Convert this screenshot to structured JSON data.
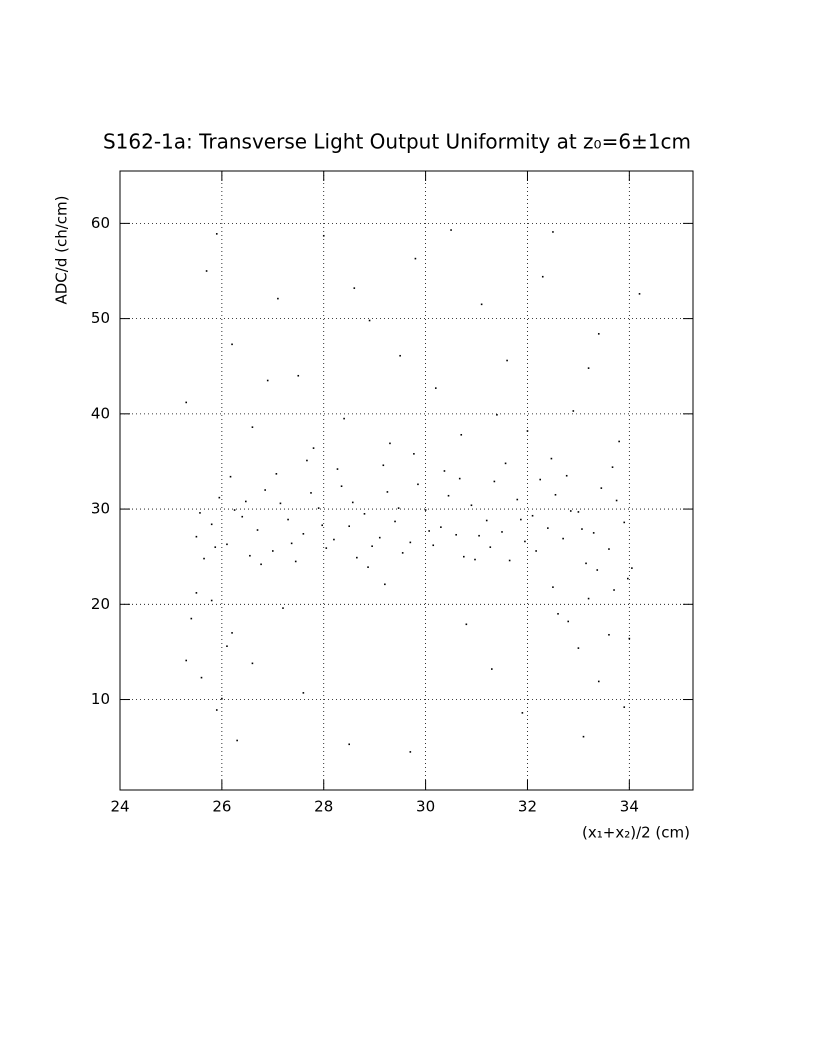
{
  "chart_data": {
    "type": "scatter",
    "title": "S162-1a: Transverse Light Output Uniformity at z₀=6±1cm",
    "x_label": "(x₁+x₂)/2 (cm)",
    "y_label": "ADC/d (ch/cm)",
    "xlim": [
      24,
      35.25
    ],
    "ylim": [
      0.5,
      65.5
    ],
    "xticks": [
      24,
      26,
      28,
      30,
      32,
      34
    ],
    "yticks": [
      10,
      20,
      30,
      40,
      50,
      60
    ],
    "grid": true,
    "color": "#000000",
    "x": [
      25.5,
      25.8,
      26.1,
      26.4,
      26.7,
      27.0,
      27.3,
      27.6,
      27.9,
      28.2,
      28.5,
      28.8,
      29.1,
      29.4,
      29.7,
      30.0,
      30.3,
      30.6,
      30.9,
      31.2,
      31.5,
      31.8,
      32.1,
      32.4,
      32.7,
      33.0,
      33.3,
      33.6,
      33.9,
      25.65,
      25.95,
      26.25,
      26.55,
      26.85,
      27.15,
      27.45,
      27.75,
      28.05,
      28.35,
      28.65,
      28.95,
      29.25,
      29.55,
      29.85,
      30.15,
      30.45,
      30.75,
      31.05,
      31.35,
      31.65,
      31.95,
      32.25,
      32.55,
      32.85,
      33.15,
      33.45,
      33.75,
      34.05,
      25.57,
      25.87,
      26.17,
      26.47,
      26.77,
      27.07,
      27.37,
      27.67,
      27.97,
      28.27,
      28.57,
      28.87,
      29.17,
      29.47,
      29.77,
      30.07,
      30.37,
      30.67,
      30.97,
      31.27,
      31.57,
      31.87,
      32.17,
      32.47,
      32.77,
      33.07,
      33.37,
      33.67,
      33.97,
      25.3,
      25.7,
      26.2,
      26.6,
      27.1,
      27.5,
      28.0,
      28.4,
      28.9,
      29.3,
      29.8,
      30.2,
      30.7,
      31.1,
      31.6,
      32.0,
      32.5,
      32.9,
      33.4,
      33.8,
      25.9,
      26.9,
      27.8,
      28.6,
      29.5,
      30.5,
      31.4,
      32.3,
      33.2,
      34.2,
      25.4,
      25.6,
      25.8,
      26.0,
      26.1,
      25.5,
      25.9,
      26.3,
      26.6,
      27.2,
      28.5,
      29.7,
      30.8,
      31.9,
      32.5,
      32.8,
      33.0,
      33.2,
      33.4,
      33.6,
      33.9,
      25.3,
      26.2,
      33.1,
      33.7,
      27.6,
      29.2,
      31.3,
      32.6,
      34.0
    ],
    "y": [
      27.1,
      28.4,
      26.3,
      29.2,
      27.8,
      25.6,
      28.9,
      27.4,
      30.1,
      26.8,
      28.2,
      29.5,
      27.0,
      28.7,
      26.5,
      29.9,
      28.1,
      27.3,
      30.4,
      28.8,
      27.6,
      31.0,
      29.3,
      28.0,
      26.9,
      29.7,
      27.5,
      25.8,
      28.6,
      24.8,
      31.2,
      29.9,
      25.1,
      32.0,
      30.6,
      24.5,
      31.7,
      25.9,
      32.4,
      24.9,
      26.1,
      31.8,
      25.4,
      32.6,
      26.2,
      31.4,
      25.0,
      27.2,
      32.9,
      24.6,
      26.6,
      33.1,
      31.5,
      29.8,
      24.3,
      32.2,
      30.9,
      23.8,
      29.6,
      26.0,
      33.4,
      30.8,
      24.2,
      33.7,
      26.4,
      35.1,
      28.3,
      34.2,
      30.7,
      23.9,
      34.6,
      30.1,
      35.8,
      27.7,
      34.0,
      33.2,
      24.7,
      26.0,
      34.8,
      28.9,
      25.6,
      35.3,
      33.5,
      27.9,
      23.6,
      34.4,
      22.7,
      41.2,
      55.0,
      47.3,
      38.6,
      52.1,
      44.0,
      58.7,
      39.5,
      49.8,
      36.9,
      56.3,
      42.7,
      37.8,
      51.5,
      45.6,
      38.2,
      59.1,
      40.3,
      48.4,
      37.1,
      58.9,
      43.5,
      36.4,
      53.2,
      46.1,
      59.3,
      39.9,
      54.4,
      44.8,
      52.6,
      18.5,
      12.3,
      20.4,
      10.1,
      15.6,
      21.2,
      8.9,
      5.7,
      13.8,
      19.6,
      5.3,
      4.5,
      17.9,
      8.6,
      21.8,
      18.2,
      15.4,
      20.6,
      11.9,
      16.8,
      9.2,
      14.1,
      17.0,
      6.1,
      21.5,
      10.7,
      22.1,
      13.2,
      19.0,
      16.4
    ]
  }
}
